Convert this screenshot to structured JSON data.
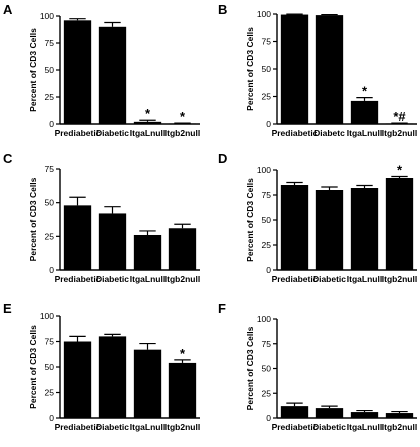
{
  "chart_data": [
    {
      "panel": "A",
      "type": "bar",
      "ylabel": "Percent of CD3 Cells",
      "ylim": [
        0,
        100
      ],
      "yticks": [
        0,
        25,
        50,
        75,
        100
      ],
      "categories": [
        "Prediabetic",
        "Diabetic",
        "ItgaLnull",
        "Itgb2null"
      ],
      "values": [
        96,
        90,
        2,
        0.5
      ],
      "errors": [
        1.5,
        4,
        1.5,
        0.3
      ],
      "annotations": [
        "",
        "",
        "*",
        "*"
      ]
    },
    {
      "panel": "B",
      "type": "bar",
      "ylabel": "Percent of CD3 Cells",
      "ylim": [
        0,
        100
      ],
      "yticks": [
        0,
        25,
        50,
        75,
        100
      ],
      "categories": [
        "Prediabetic",
        "Diabetc",
        "ItgaLnull",
        "Itgb2null"
      ],
      "values": [
        99.5,
        99,
        21,
        0.5
      ],
      "errors": [
        0.4,
        0.5,
        3,
        0.3
      ],
      "annotations": [
        "",
        "",
        "*",
        "*#"
      ]
    },
    {
      "panel": "C",
      "type": "bar",
      "ylabel": "Percent of CD3 Cells",
      "ylim": [
        0,
        75
      ],
      "yticks": [
        0,
        25,
        50,
        75
      ],
      "categories": [
        "Prediabetic",
        "Diabetic",
        "ItgaLnull",
        "Itgb2null"
      ],
      "values": [
        48,
        42,
        26,
        31
      ],
      "errors": [
        6,
        5,
        3,
        3
      ],
      "annotations": [
        "",
        "",
        "",
        ""
      ]
    },
    {
      "panel": "D",
      "type": "bar",
      "ylabel": "Percent of CD3 Cells",
      "ylim": [
        0,
        100
      ],
      "yticks": [
        0,
        25,
        50,
        75,
        100
      ],
      "categories": [
        "Prediabetic",
        "Diabetic",
        "ItgaLnull",
        "Itgb2null"
      ],
      "values": [
        85,
        80,
        82,
        92
      ],
      "errors": [
        2.5,
        3,
        2.5,
        1.5
      ],
      "annotations": [
        "",
        "",
        "",
        "*"
      ]
    },
    {
      "panel": "E",
      "type": "bar",
      "ylabel": "Percent of CD3 Cells",
      "ylim": [
        0,
        100
      ],
      "yticks": [
        0,
        25,
        50,
        75,
        100
      ],
      "categories": [
        "Prediabetic",
        "Diabetic",
        "ItgaLnull",
        "Itgb2null"
      ],
      "values": [
        75,
        80,
        67,
        54
      ],
      "errors": [
        5,
        2,
        6,
        3
      ],
      "annotations": [
        "",
        "",
        "",
        "*"
      ]
    },
    {
      "panel": "F",
      "type": "bar",
      "ylabel": "Percent of CD3 Cells",
      "ylim": [
        0,
        100
      ],
      "yticks": [
        0,
        25,
        50,
        75,
        100
      ],
      "categories": [
        "Prediabetic",
        "Diabetic",
        "ItgaLnull",
        "Itgb2null"
      ],
      "values": [
        12,
        10,
        6,
        5
      ],
      "errors": [
        3,
        2,
        1.5,
        1.5
      ],
      "annotations": [
        "",
        "",
        "",
        ""
      ]
    }
  ],
  "colors": {
    "bar": "#000000",
    "axis": "#000000"
  }
}
